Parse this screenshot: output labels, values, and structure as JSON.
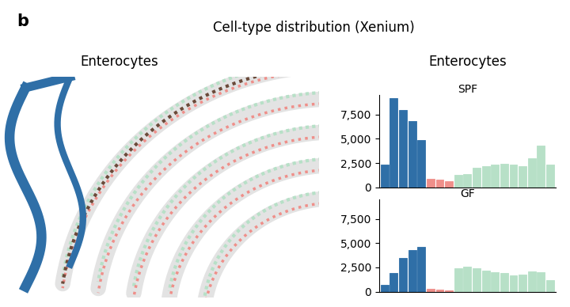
{
  "panel_label": "b",
  "title": "Cell-type distribution (Xenium)",
  "image_label": "Enterocytes",
  "histogram_label": "Enterocytes",
  "chart_data": [
    {
      "type": "bar",
      "title": "SPF",
      "categories": [
        null,
        null,
        null,
        null,
        null,
        null,
        null,
        null,
        null,
        null,
        null,
        null,
        null,
        null,
        null,
        null,
        null,
        null,
        null
      ],
      "values": [
        2300,
        9200,
        8000,
        6800,
        4900,
        900,
        800,
        600,
        1300,
        1400,
        2000,
        2200,
        2300,
        2400,
        2300,
        2200,
        3000,
        4300,
        2300
      ],
      "colors": [
        "#2f6fa7",
        "#2f6fa7",
        "#2f6fa7",
        "#2f6fa7",
        "#2f6fa7",
        "#ef8f8a",
        "#ef8f8a",
        "#ef8f8a",
        "#b7e0c7",
        "#b7e0c7",
        "#b7e0c7",
        "#b7e0c7",
        "#b7e0c7",
        "#b7e0c7",
        "#b7e0c7",
        "#b7e0c7",
        "#b7e0c7",
        "#b7e0c7",
        "#b7e0c7"
      ],
      "ylim": [
        0,
        9500
      ],
      "yticks": [
        0,
        {
          "value": 2500,
          "label": "2,500"
        },
        {
          "value": 5000,
          "label": "5,000"
        },
        {
          "value": 7500,
          "label": "7,500"
        }
      ],
      "tick_labels": "y"
    },
    {
      "type": "bar",
      "title": "GF",
      "categories": [
        null,
        null,
        null,
        null,
        null,
        null,
        null,
        null,
        null,
        null,
        null,
        null,
        null,
        null,
        null,
        null,
        null,
        null,
        null
      ],
      "values": [
        700,
        1900,
        3500,
        4300,
        4600,
        300,
        200,
        100,
        2400,
        2600,
        2400,
        2200,
        2000,
        1900,
        1700,
        1800,
        2100,
        2000,
        1200
      ],
      "colors": [
        "#2f6fa7",
        "#2f6fa7",
        "#2f6fa7",
        "#2f6fa7",
        "#2f6fa7",
        "#ef8f8a",
        "#ef8f8a",
        "#ef8f8a",
        "#b7e0c7",
        "#b7e0c7",
        "#b7e0c7",
        "#b7e0c7",
        "#b7e0c7",
        "#b7e0c7",
        "#b7e0c7",
        "#b7e0c7",
        "#b7e0c7",
        "#b7e0c7",
        "#b7e0c7"
      ],
      "ylim": [
        0,
        9500
      ],
      "yticks": [
        0,
        {
          "value": 2500,
          "label": "2,500"
        },
        {
          "value": 5000,
          "label": "5,000"
        },
        {
          "value": 7500,
          "label": "7,500"
        }
      ],
      "tick_labels": "y"
    }
  ]
}
